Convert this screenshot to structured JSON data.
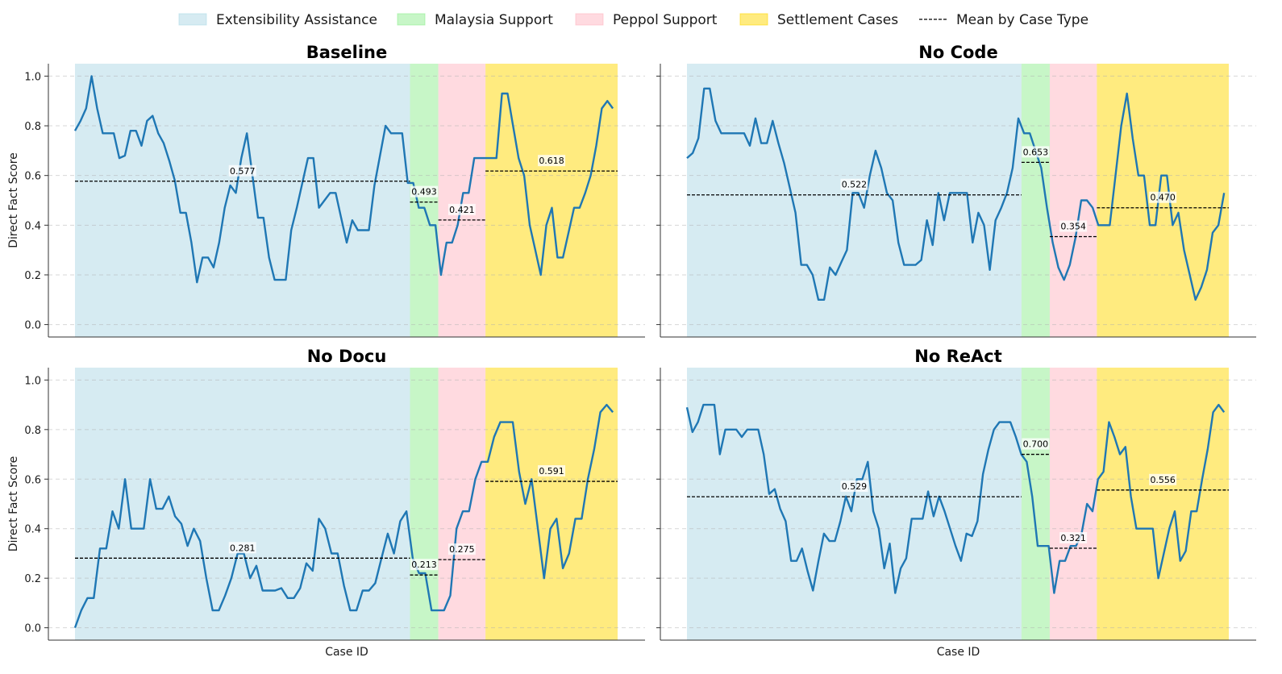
{
  "legend": {
    "items": [
      {
        "label": "Extensibility Assistance",
        "kind": "patch",
        "color": "#add8e6"
      },
      {
        "label": "Malaysia Support",
        "kind": "patch",
        "color": "#90ee90"
      },
      {
        "label": "Peppol Support",
        "kind": "patch",
        "color": "#ffb6c1"
      },
      {
        "label": "Settlement Cases",
        "kind": "patch",
        "color": "#ffd700"
      },
      {
        "label": "Mean by Case Type",
        "kind": "line",
        "color": "#000000"
      }
    ]
  },
  "chart_data": {
    "type": "line",
    "ylabel": "Direct Fact Score",
    "xlabel": "Case ID",
    "ylim": [
      -0.05,
      1.05
    ],
    "yticks": [
      "0.0",
      "0.2",
      "0.4",
      "0.6",
      "0.8",
      "1.0"
    ],
    "grid": "horizontal dashed",
    "legend_position": "top",
    "line_color": "#1f77b4",
    "case_types": [
      {
        "name": "Extensibility Assistance",
        "color": "#add8e6",
        "start": 0,
        "end": 71
      },
      {
        "name": "Malaysia Support",
        "color": "#90ee90",
        "start": 71,
        "end": 77
      },
      {
        "name": "Peppol Support",
        "color": "#ffb6c1",
        "start": 77,
        "end": 87
      },
      {
        "name": "Settlement Cases",
        "color": "#ffd700",
        "start": 87,
        "end": 115
      }
    ],
    "panels": [
      {
        "title": "Baseline",
        "means": [
          {
            "value": 0.577,
            "label": "0.577"
          },
          {
            "value": 0.493,
            "label": "0.493"
          },
          {
            "value": 0.421,
            "label": "0.421"
          },
          {
            "value": 0.618,
            "label": "0.618"
          }
        ],
        "values": [
          0.78,
          0.82,
          0.87,
          1.0,
          0.87,
          0.77,
          0.77,
          0.77,
          0.67,
          0.68,
          0.78,
          0.78,
          0.72,
          0.82,
          0.84,
          0.77,
          0.73,
          0.66,
          0.58,
          0.45,
          0.45,
          0.33,
          0.17,
          0.27,
          0.27,
          0.23,
          0.33,
          0.47,
          0.56,
          0.53,
          0.67,
          0.77,
          0.6,
          0.43,
          0.43,
          0.27,
          0.18,
          0.18,
          0.18,
          0.38,
          0.47,
          0.57,
          0.67,
          0.67,
          0.47,
          0.5,
          0.53,
          0.53,
          0.43,
          0.33,
          0.42,
          0.38,
          0.38,
          0.38,
          0.56,
          0.68,
          0.8,
          0.77,
          0.77,
          0.77,
          0.57,
          0.57,
          0.47,
          0.47,
          0.4,
          0.4,
          0.2,
          0.33,
          0.33,
          0.4,
          0.53,
          0.53,
          0.67,
          0.67,
          0.67,
          0.67,
          0.67,
          0.93,
          0.93,
          0.8,
          0.67,
          0.6,
          0.4,
          0.3,
          0.2,
          0.4,
          0.47,
          0.27,
          0.27,
          0.37,
          0.47,
          0.47,
          0.53,
          0.6,
          0.72,
          0.87,
          0.9,
          0.87
        ]
      },
      {
        "title": "No Code",
        "means": [
          {
            "value": 0.522,
            "label": "0.522"
          },
          {
            "value": 0.653,
            "label": "0.653"
          },
          {
            "value": 0.354,
            "label": "0.354"
          },
          {
            "value": 0.47,
            "label": "0.470"
          }
        ],
        "values": [
          0.67,
          0.69,
          0.75,
          0.95,
          0.95,
          0.82,
          0.77,
          0.77,
          0.77,
          0.77,
          0.77,
          0.72,
          0.83,
          0.73,
          0.73,
          0.82,
          0.73,
          0.65,
          0.55,
          0.45,
          0.24,
          0.24,
          0.2,
          0.1,
          0.1,
          0.23,
          0.2,
          0.25,
          0.3,
          0.53,
          0.53,
          0.47,
          0.6,
          0.7,
          0.63,
          0.53,
          0.5,
          0.33,
          0.24,
          0.24,
          0.24,
          0.26,
          0.42,
          0.32,
          0.53,
          0.42,
          0.53,
          0.53,
          0.53,
          0.53,
          0.33,
          0.45,
          0.4,
          0.22,
          0.42,
          0.47,
          0.53,
          0.63,
          0.83,
          0.77,
          0.77,
          0.7,
          0.63,
          0.47,
          0.33,
          0.23,
          0.18,
          0.24,
          0.35,
          0.5,
          0.5,
          0.47,
          0.4,
          0.4,
          0.4,
          0.6,
          0.8,
          0.93,
          0.75,
          0.6,
          0.6,
          0.4,
          0.4,
          0.6,
          0.6,
          0.4,
          0.45,
          0.3,
          0.2,
          0.1,
          0.15,
          0.22,
          0.37,
          0.4,
          0.53
        ]
      },
      {
        "title": "No Docu",
        "means": [
          {
            "value": 0.281,
            "label": "0.281"
          },
          {
            "value": 0.213,
            "label": "0.213"
          },
          {
            "value": 0.275,
            "label": "0.275"
          },
          {
            "value": 0.591,
            "label": "0.591"
          }
        ],
        "values": [
          0.0,
          0.07,
          0.12,
          0.12,
          0.32,
          0.32,
          0.47,
          0.4,
          0.6,
          0.4,
          0.4,
          0.4,
          0.6,
          0.48,
          0.48,
          0.53,
          0.45,
          0.42,
          0.33,
          0.4,
          0.35,
          0.2,
          0.07,
          0.07,
          0.13,
          0.2,
          0.3,
          0.3,
          0.2,
          0.25,
          0.15,
          0.15,
          0.15,
          0.16,
          0.12,
          0.12,
          0.16,
          0.26,
          0.23,
          0.44,
          0.4,
          0.3,
          0.3,
          0.17,
          0.07,
          0.07,
          0.15,
          0.15,
          0.18,
          0.28,
          0.38,
          0.3,
          0.43,
          0.47,
          0.28,
          0.22,
          0.22,
          0.07,
          0.07,
          0.07,
          0.13,
          0.4,
          0.47,
          0.47,
          0.6,
          0.67,
          0.67,
          0.77,
          0.83,
          0.83,
          0.83,
          0.63,
          0.5,
          0.6,
          0.4,
          0.2,
          0.4,
          0.44,
          0.24,
          0.3,
          0.44,
          0.44,
          0.6,
          0.72,
          0.87,
          0.9,
          0.87
        ]
      },
      {
        "title": "No ReAct",
        "means": [
          {
            "value": 0.529,
            "label": "0.529"
          },
          {
            "value": 0.7,
            "label": "0.700"
          },
          {
            "value": 0.321,
            "label": "0.321"
          },
          {
            "value": 0.556,
            "label": "0.556"
          }
        ],
        "values": [
          0.89,
          0.79,
          0.83,
          0.9,
          0.9,
          0.9,
          0.7,
          0.8,
          0.8,
          0.8,
          0.77,
          0.8,
          0.8,
          0.8,
          0.7,
          0.54,
          0.56,
          0.48,
          0.43,
          0.27,
          0.27,
          0.32,
          0.23,
          0.15,
          0.27,
          0.38,
          0.35,
          0.35,
          0.43,
          0.53,
          0.47,
          0.6,
          0.6,
          0.67,
          0.47,
          0.4,
          0.24,
          0.34,
          0.14,
          0.24,
          0.28,
          0.44,
          0.44,
          0.44,
          0.55,
          0.45,
          0.53,
          0.47,
          0.4,
          0.33,
          0.27,
          0.38,
          0.37,
          0.43,
          0.62,
          0.72,
          0.8,
          0.83,
          0.83,
          0.83,
          0.77,
          0.7,
          0.67,
          0.53,
          0.33,
          0.33,
          0.33,
          0.14,
          0.27,
          0.27,
          0.33,
          0.33,
          0.38,
          0.5,
          0.47,
          0.6,
          0.63,
          0.83,
          0.77,
          0.7,
          0.73,
          0.53,
          0.4,
          0.4,
          0.4,
          0.4,
          0.2,
          0.3,
          0.4,
          0.47,
          0.27,
          0.31,
          0.47,
          0.47,
          0.6,
          0.72,
          0.87,
          0.9,
          0.87
        ]
      }
    ]
  }
}
